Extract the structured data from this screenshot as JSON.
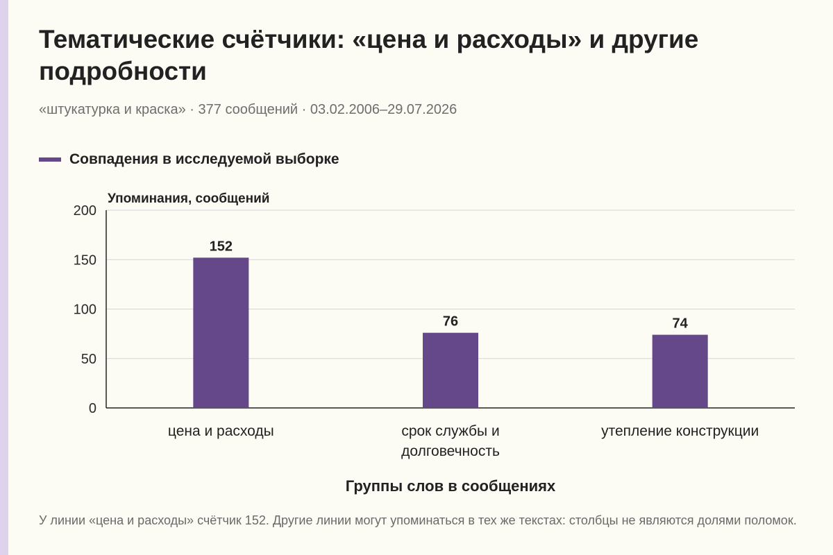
{
  "header": {
    "title": "Тематические счётчики: «цена и расходы» и другие подробности",
    "subtitle": "«штукатурка и краска» · 377 сообщений · 03.02.2006–29.07.2026"
  },
  "footnote": "У линии «цена и расходы» счётчик 152. Другие линии могут упоминаться в тех же текстах: столбцы не являются долями поломок.",
  "colors": {
    "bar": "#65488a",
    "grid": "#d6d6d6",
    "axis": "#222222",
    "background": "#fcfbf4",
    "side_stripe": "#ddd3ea"
  },
  "chart_data": {
    "type": "bar",
    "categories": [
      [
        "цена и расходы"
      ],
      [
        "срок службы и",
        "долговечность"
      ],
      [
        "утепление конструкции"
      ]
    ],
    "series": [
      {
        "name": "Совпадения в исследуемой выборке",
        "values": [
          152,
          76,
          74
        ]
      }
    ],
    "data_labels": [
      "152",
      "76",
      "74"
    ],
    "ylabel": "Упоминания, сообщений",
    "xlabel": "Группы слов в сообщениях",
    "ylim": [
      0,
      200
    ],
    "yticks": [
      0,
      50,
      100,
      150,
      200
    ],
    "grid": true,
    "legend": "top-left"
  }
}
